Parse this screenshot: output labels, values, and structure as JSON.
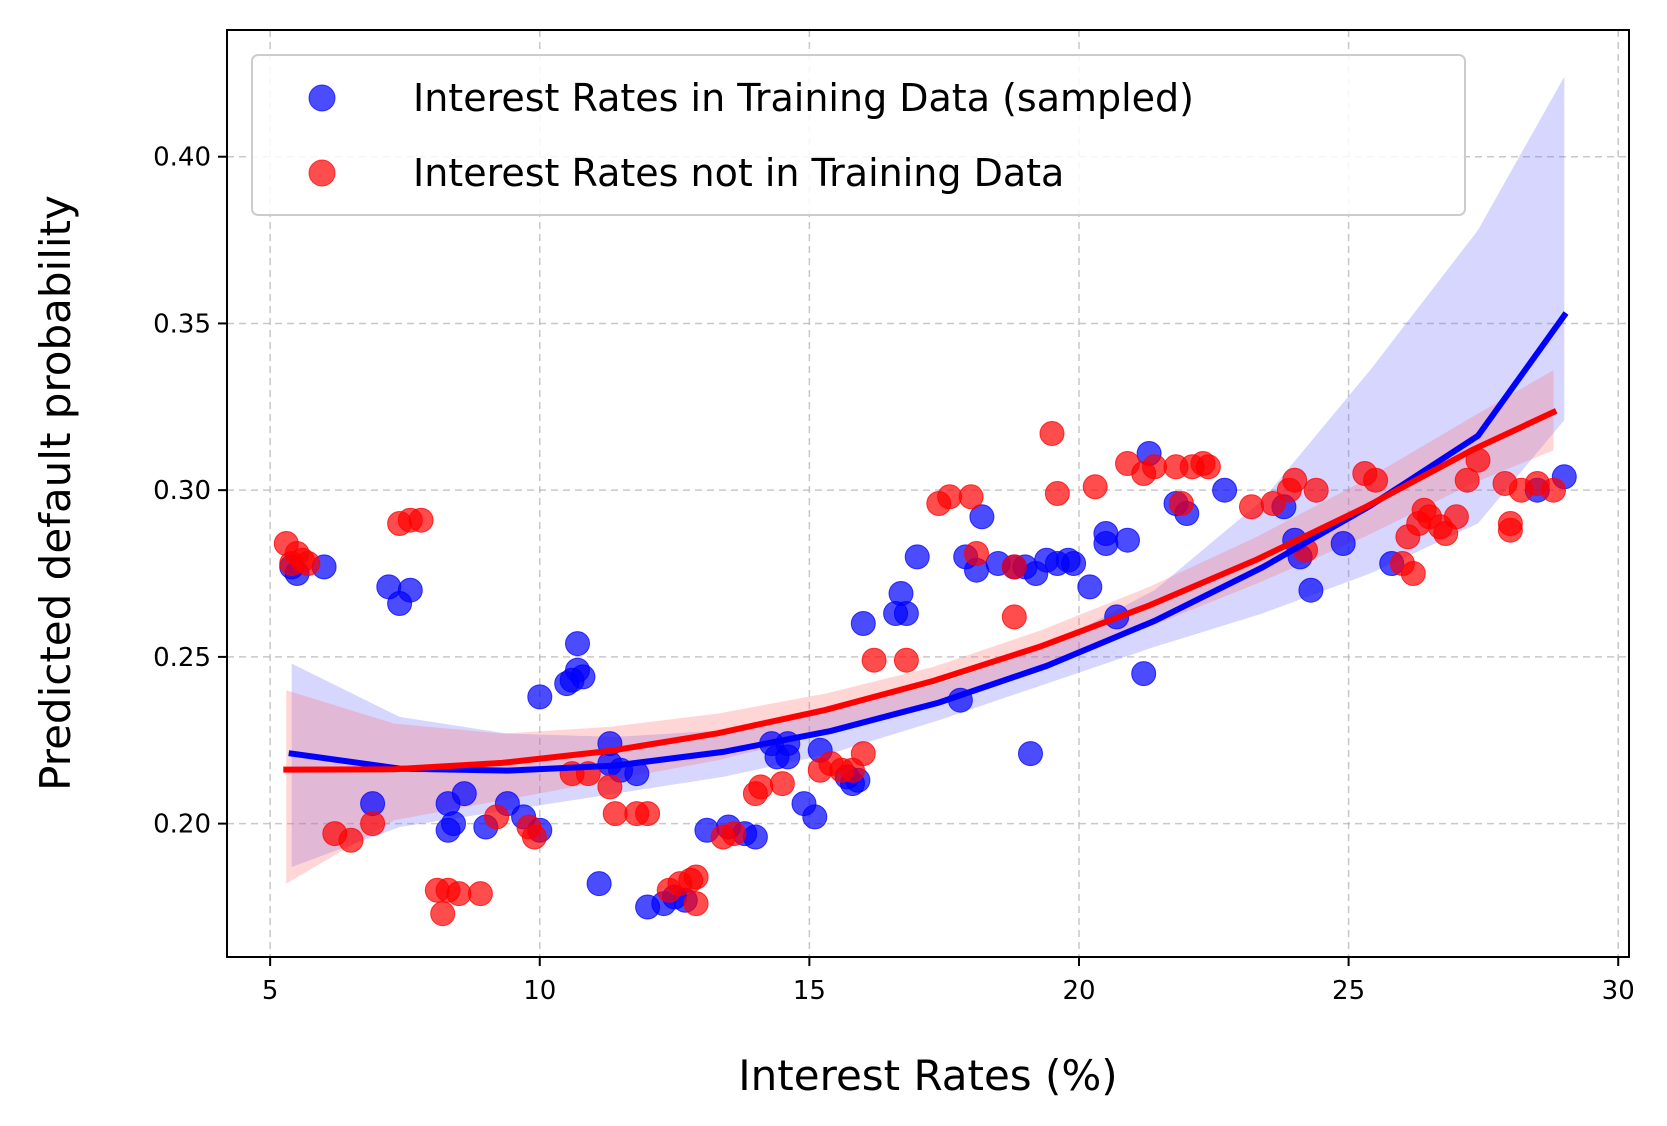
{
  "chart_data": {
    "type": "scatter",
    "xlabel": "Interest Rates (%)",
    "ylabel": "Predicted default probability",
    "xlim": [
      4.2,
      30.2
    ],
    "ylim": [
      0.16,
      0.438
    ],
    "xticks": [
      5,
      10,
      15,
      20,
      25,
      30
    ],
    "xtick_labels": [
      "5",
      "10",
      "15",
      "20",
      "25",
      "30"
    ],
    "yticks": [
      0.2,
      0.25,
      0.3,
      0.35,
      0.4
    ],
    "ytick_labels": [
      "0.20",
      "0.25",
      "0.30",
      "0.35",
      "0.40"
    ],
    "grid": true,
    "legend_position": "top-left",
    "series": [
      {
        "name": "Interest Rates in Training Data (sampled)",
        "color": "#0000ff",
        "points": [
          [
            5.4,
            0.277
          ],
          [
            5.5,
            0.275
          ],
          [
            6.0,
            0.277
          ],
          [
            6.9,
            0.206
          ],
          [
            7.2,
            0.271
          ],
          [
            7.4,
            0.266
          ],
          [
            7.6,
            0.27
          ],
          [
            8.3,
            0.206
          ],
          [
            8.3,
            0.198
          ],
          [
            8.4,
            0.2
          ],
          [
            8.6,
            0.209
          ],
          [
            9.0,
            0.199
          ],
          [
            9.4,
            0.206
          ],
          [
            9.7,
            0.202
          ],
          [
            10.0,
            0.238
          ],
          [
            10.0,
            0.198
          ],
          [
            10.5,
            0.242
          ],
          [
            10.6,
            0.243
          ],
          [
            10.7,
            0.254
          ],
          [
            10.7,
            0.246
          ],
          [
            10.8,
            0.244
          ],
          [
            11.1,
            0.182
          ],
          [
            11.3,
            0.224
          ],
          [
            11.3,
            0.218
          ],
          [
            11.5,
            0.216
          ],
          [
            11.8,
            0.215
          ],
          [
            12.0,
            0.175
          ],
          [
            12.3,
            0.176
          ],
          [
            12.5,
            0.178
          ],
          [
            12.7,
            0.177
          ],
          [
            13.1,
            0.198
          ],
          [
            13.5,
            0.199
          ],
          [
            13.8,
            0.197
          ],
          [
            14.0,
            0.196
          ],
          [
            14.3,
            0.224
          ],
          [
            14.4,
            0.22
          ],
          [
            14.6,
            0.224
          ],
          [
            14.6,
            0.22
          ],
          [
            14.9,
            0.206
          ],
          [
            15.1,
            0.202
          ],
          [
            15.2,
            0.222
          ],
          [
            15.7,
            0.214
          ],
          [
            15.8,
            0.212
          ],
          [
            15.9,
            0.213
          ],
          [
            16.0,
            0.26
          ],
          [
            16.6,
            0.263
          ],
          [
            16.7,
            0.269
          ],
          [
            16.8,
            0.263
          ],
          [
            17.0,
            0.28
          ],
          [
            17.8,
            0.237
          ],
          [
            17.9,
            0.28
          ],
          [
            18.1,
            0.276
          ],
          [
            18.2,
            0.292
          ],
          [
            18.5,
            0.278
          ],
          [
            18.8,
            0.277
          ],
          [
            19.0,
            0.277
          ],
          [
            19.1,
            0.221
          ],
          [
            19.2,
            0.275
          ],
          [
            19.4,
            0.279
          ],
          [
            19.6,
            0.278
          ],
          [
            19.8,
            0.279
          ],
          [
            19.9,
            0.278
          ],
          [
            20.2,
            0.271
          ],
          [
            20.5,
            0.284
          ],
          [
            20.5,
            0.287
          ],
          [
            20.7,
            0.262
          ],
          [
            20.9,
            0.285
          ],
          [
            21.2,
            0.245
          ],
          [
            21.3,
            0.311
          ],
          [
            21.8,
            0.296
          ],
          [
            22.0,
            0.293
          ],
          [
            22.7,
            0.3
          ],
          [
            23.8,
            0.295
          ],
          [
            24.0,
            0.285
          ],
          [
            24.1,
            0.28
          ],
          [
            24.3,
            0.27
          ],
          [
            24.9,
            0.284
          ],
          [
            25.8,
            0.278
          ],
          [
            28.5,
            0.3
          ],
          [
            29.0,
            0.304
          ]
        ],
        "fit": [
          [
            5.4,
            0.221
          ],
          [
            7.4,
            0.2165
          ],
          [
            9.4,
            0.2159
          ],
          [
            11.4,
            0.2174
          ],
          [
            13.4,
            0.2215
          ],
          [
            15.4,
            0.2278
          ],
          [
            17.4,
            0.2363
          ],
          [
            19.4,
            0.2473
          ],
          [
            21.4,
            0.2608
          ],
          [
            23.4,
            0.2768
          ],
          [
            25.4,
            0.2953
          ],
          [
            27.4,
            0.3163
          ],
          [
            29.0,
            0.3524
          ]
        ],
        "ci_upper": [
          [
            5.4,
            0.248
          ],
          [
            7.4,
            0.232
          ],
          [
            9.4,
            0.227
          ],
          [
            11.4,
            0.226
          ],
          [
            13.4,
            0.228
          ],
          [
            15.4,
            0.234
          ],
          [
            17.4,
            0.242
          ],
          [
            19.4,
            0.253
          ],
          [
            21.4,
            0.27
          ],
          [
            23.4,
            0.297
          ],
          [
            25.4,
            0.336
          ],
          [
            27.4,
            0.378
          ],
          [
            29.0,
            0.424
          ]
        ],
        "ci_lower": [
          [
            5.4,
            0.187
          ],
          [
            7.4,
            0.199
          ],
          [
            9.4,
            0.204
          ],
          [
            11.4,
            0.209
          ],
          [
            13.4,
            0.214
          ],
          [
            15.4,
            0.221
          ],
          [
            17.4,
            0.231
          ],
          [
            19.4,
            0.242
          ],
          [
            21.4,
            0.253
          ],
          [
            23.4,
            0.263
          ],
          [
            25.4,
            0.275
          ],
          [
            27.4,
            0.29
          ],
          [
            29.0,
            0.321
          ]
        ]
      },
      {
        "name": "Interest Rates not in Training Data",
        "color": "#ff0000",
        "points": [
          [
            5.3,
            0.284
          ],
          [
            5.4,
            0.278
          ],
          [
            5.5,
            0.281
          ],
          [
            5.6,
            0.279
          ],
          [
            5.7,
            0.278
          ],
          [
            6.2,
            0.197
          ],
          [
            6.5,
            0.195
          ],
          [
            6.9,
            0.2
          ],
          [
            7.4,
            0.29
          ],
          [
            7.6,
            0.291
          ],
          [
            7.8,
            0.291
          ],
          [
            8.1,
            0.18
          ],
          [
            8.2,
            0.173
          ],
          [
            8.3,
            0.18
          ],
          [
            8.5,
            0.179
          ],
          [
            8.9,
            0.179
          ],
          [
            9.2,
            0.202
          ],
          [
            9.8,
            0.199
          ],
          [
            9.9,
            0.196
          ],
          [
            10.6,
            0.215
          ],
          [
            10.9,
            0.215
          ],
          [
            11.3,
            0.211
          ],
          [
            11.4,
            0.203
          ],
          [
            11.8,
            0.203
          ],
          [
            12.0,
            0.203
          ],
          [
            12.4,
            0.18
          ],
          [
            12.6,
            0.182
          ],
          [
            12.8,
            0.183
          ],
          [
            12.9,
            0.184
          ],
          [
            12.9,
            0.176
          ],
          [
            13.4,
            0.196
          ],
          [
            13.6,
            0.197
          ],
          [
            14.0,
            0.209
          ],
          [
            14.1,
            0.211
          ],
          [
            14.5,
            0.212
          ],
          [
            15.2,
            0.216
          ],
          [
            15.4,
            0.218
          ],
          [
            15.6,
            0.216
          ],
          [
            15.8,
            0.216
          ],
          [
            16.0,
            0.221
          ],
          [
            16.2,
            0.249
          ],
          [
            16.8,
            0.249
          ],
          [
            17.4,
            0.296
          ],
          [
            17.6,
            0.298
          ],
          [
            18.0,
            0.298
          ],
          [
            18.1,
            0.281
          ],
          [
            18.8,
            0.262
          ],
          [
            18.8,
            0.277
          ],
          [
            19.5,
            0.317
          ],
          [
            19.6,
            0.299
          ],
          [
            20.3,
            0.301
          ],
          [
            20.9,
            0.308
          ],
          [
            21.2,
            0.305
          ],
          [
            21.4,
            0.307
          ],
          [
            21.8,
            0.307
          ],
          [
            21.9,
            0.296
          ],
          [
            22.1,
            0.307
          ],
          [
            22.3,
            0.308
          ],
          [
            22.4,
            0.307
          ],
          [
            23.2,
            0.295
          ],
          [
            23.6,
            0.296
          ],
          [
            23.9,
            0.3
          ],
          [
            24.0,
            0.303
          ],
          [
            24.2,
            0.282
          ],
          [
            24.4,
            0.3
          ],
          [
            25.3,
            0.305
          ],
          [
            25.5,
            0.303
          ],
          [
            26.0,
            0.278
          ],
          [
            26.2,
            0.275
          ],
          [
            26.1,
            0.286
          ],
          [
            26.3,
            0.29
          ],
          [
            26.4,
            0.294
          ],
          [
            26.5,
            0.292
          ],
          [
            26.7,
            0.289
          ],
          [
            26.8,
            0.287
          ],
          [
            27.0,
            0.292
          ],
          [
            27.2,
            0.303
          ],
          [
            27.4,
            0.309
          ],
          [
            27.9,
            0.302
          ],
          [
            28.0,
            0.29
          ],
          [
            28.0,
            0.288
          ],
          [
            28.2,
            0.3
          ],
          [
            28.5,
            0.302
          ],
          [
            28.8,
            0.3
          ]
        ],
        "fit": [
          [
            5.3,
            0.2162
          ],
          [
            7.3,
            0.2163
          ],
          [
            9.3,
            0.2182
          ],
          [
            11.3,
            0.2218
          ],
          [
            13.3,
            0.2271
          ],
          [
            15.3,
            0.2341
          ],
          [
            17.3,
            0.2428
          ],
          [
            19.3,
            0.2532
          ],
          [
            21.3,
            0.2654
          ],
          [
            23.3,
            0.2792
          ],
          [
            25.3,
            0.2948
          ],
          [
            27.3,
            0.3121
          ],
          [
            28.8,
            0.3234
          ]
        ],
        "ci_upper": [
          [
            5.3,
            0.24
          ],
          [
            7.3,
            0.23
          ],
          [
            9.3,
            0.227
          ],
          [
            11.3,
            0.229
          ],
          [
            13.3,
            0.233
          ],
          [
            15.3,
            0.239
          ],
          [
            17.3,
            0.247
          ],
          [
            19.3,
            0.258
          ],
          [
            21.3,
            0.271
          ],
          [
            23.3,
            0.286
          ],
          [
            25.3,
            0.303
          ],
          [
            27.3,
            0.322
          ],
          [
            28.8,
            0.336
          ]
        ],
        "ci_lower": [
          [
            5.3,
            0.182
          ],
          [
            7.3,
            0.201
          ],
          [
            9.3,
            0.207
          ],
          [
            11.3,
            0.213
          ],
          [
            13.3,
            0.219
          ],
          [
            15.3,
            0.227
          ],
          [
            17.3,
            0.236
          ],
          [
            19.3,
            0.247
          ],
          [
            21.3,
            0.259
          ],
          [
            23.3,
            0.272
          ],
          [
            25.3,
            0.286
          ],
          [
            27.3,
            0.302
          ],
          [
            28.8,
            0.312
          ]
        ]
      }
    ]
  }
}
